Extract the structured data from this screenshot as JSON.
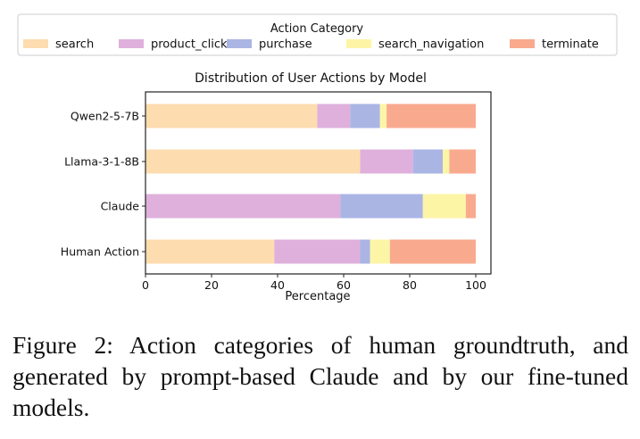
{
  "chart_data": {
    "type": "bar",
    "orientation": "horizontal",
    "stacked": true,
    "title": "Distribution of User Actions by Model",
    "xlabel": "Percentage",
    "ylabel": "",
    "xlim": [
      0,
      100
    ],
    "xticks": [
      "0",
      "20",
      "40",
      "60",
      "80",
      "100"
    ],
    "categories": [
      "Qwen2-5-7B",
      "Llama-3-1-8B",
      "Claude",
      "Human Action"
    ],
    "legend": {
      "title": "Action Category",
      "position": "top"
    },
    "series": [
      {
        "name": "search",
        "color": "#fddcb0",
        "values": [
          52,
          65,
          0,
          39
        ]
      },
      {
        "name": "product_click",
        "color": "#dfb0dc",
        "values": [
          10,
          16,
          59,
          26
        ]
      },
      {
        "name": "purchase",
        "color": "#aab5e4",
        "values": [
          9,
          9,
          25,
          3
        ]
      },
      {
        "name": "search_navigation",
        "color": "#fdf5a6",
        "values": [
          2,
          2,
          13,
          6
        ]
      },
      {
        "name": "terminate",
        "color": "#f9aa8e",
        "values": [
          27,
          8,
          3,
          26
        ]
      }
    ],
    "grid": false
  },
  "caption": "Figure 2: Action categories of human groundtruth, and generated by prompt-based Claude and by our fine-tuned models."
}
